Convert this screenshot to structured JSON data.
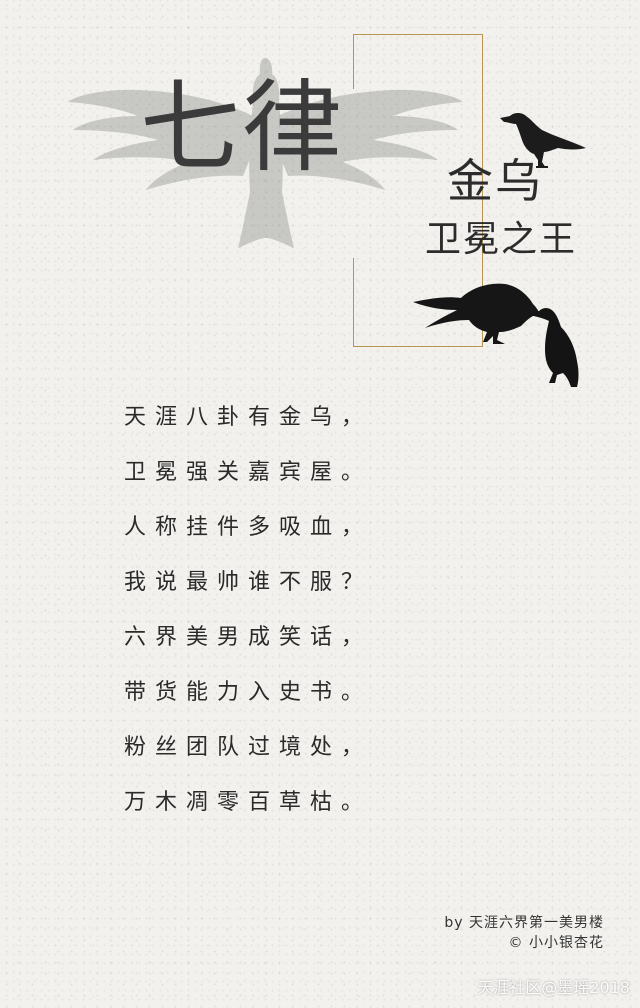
{
  "title": "七律",
  "subtitle": {
    "line1": "金乌",
    "line2": "卫冕之王"
  },
  "poem": {
    "lines": [
      "天涯八卦有金乌，",
      "卫冕强关嘉宾屋。",
      "人称挂件多吸血，",
      "我说最帅谁不服？",
      "六界美男成笑话，",
      "带货能力入史书。",
      "粉丝团队过境处，",
      "万木凋零百草枯。"
    ]
  },
  "credit": {
    "by_line": "by  天涯六界第一美男楼",
    "copyright_line": "© 小小银杏花"
  },
  "watermark": "天涯社区@墨瑶2018",
  "colors": {
    "background": "#f2f1ee",
    "frame_gold": "#b8964f",
    "ink": "#2b2b2b"
  },
  "icons": {
    "eagle": "eagle-silhouette",
    "crow_top": "crow-silhouette",
    "crow_pair": "two-crows-silhouette"
  }
}
